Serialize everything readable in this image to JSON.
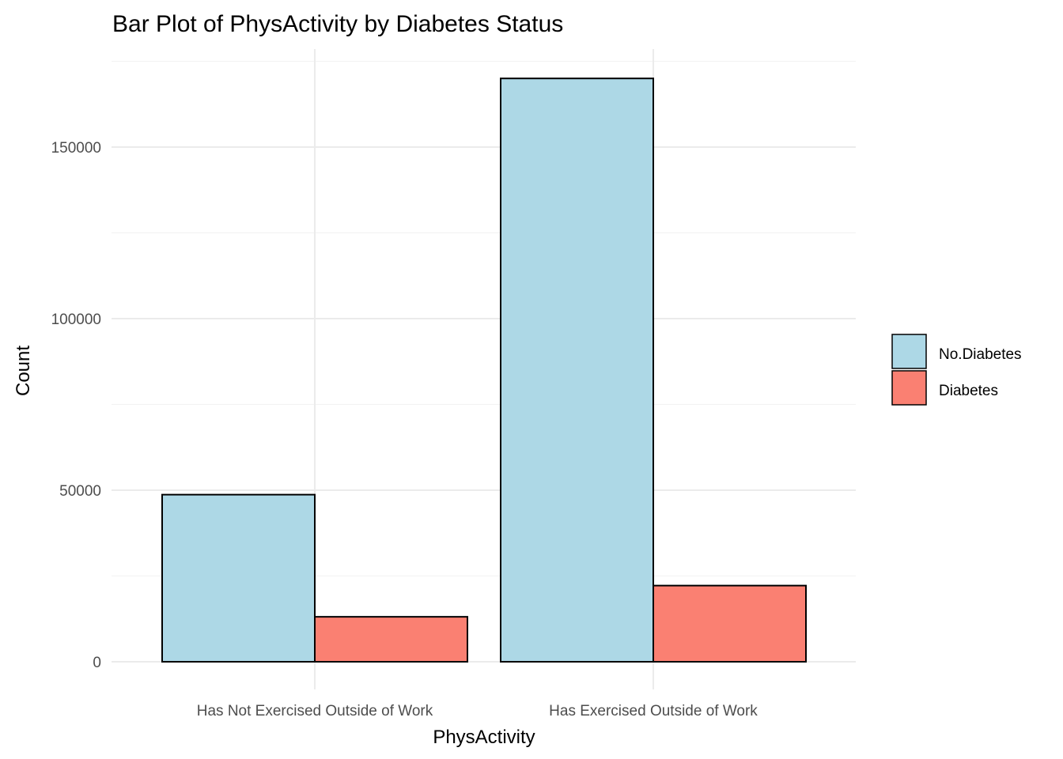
{
  "chart_data": {
    "type": "bar",
    "title": "Bar Plot of PhysActivity by Diabetes Status",
    "xlabel": "PhysActivity",
    "ylabel": "Count",
    "categories": [
      "Has Not Exercised Outside of Work",
      "Has Exercised Outside of Work"
    ],
    "series": [
      {
        "name": "No.Diabetes",
        "color": "#add8e6",
        "values": [
          48700,
          170000
        ]
      },
      {
        "name": "Diabetes",
        "color": "#fa8072",
        "values": [
          13100,
          22200
        ]
      }
    ],
    "ylim": [
      0,
      175000
    ],
    "yticks": [
      0,
      50000,
      100000,
      150000
    ],
    "grid": true,
    "legend_position": "right"
  }
}
